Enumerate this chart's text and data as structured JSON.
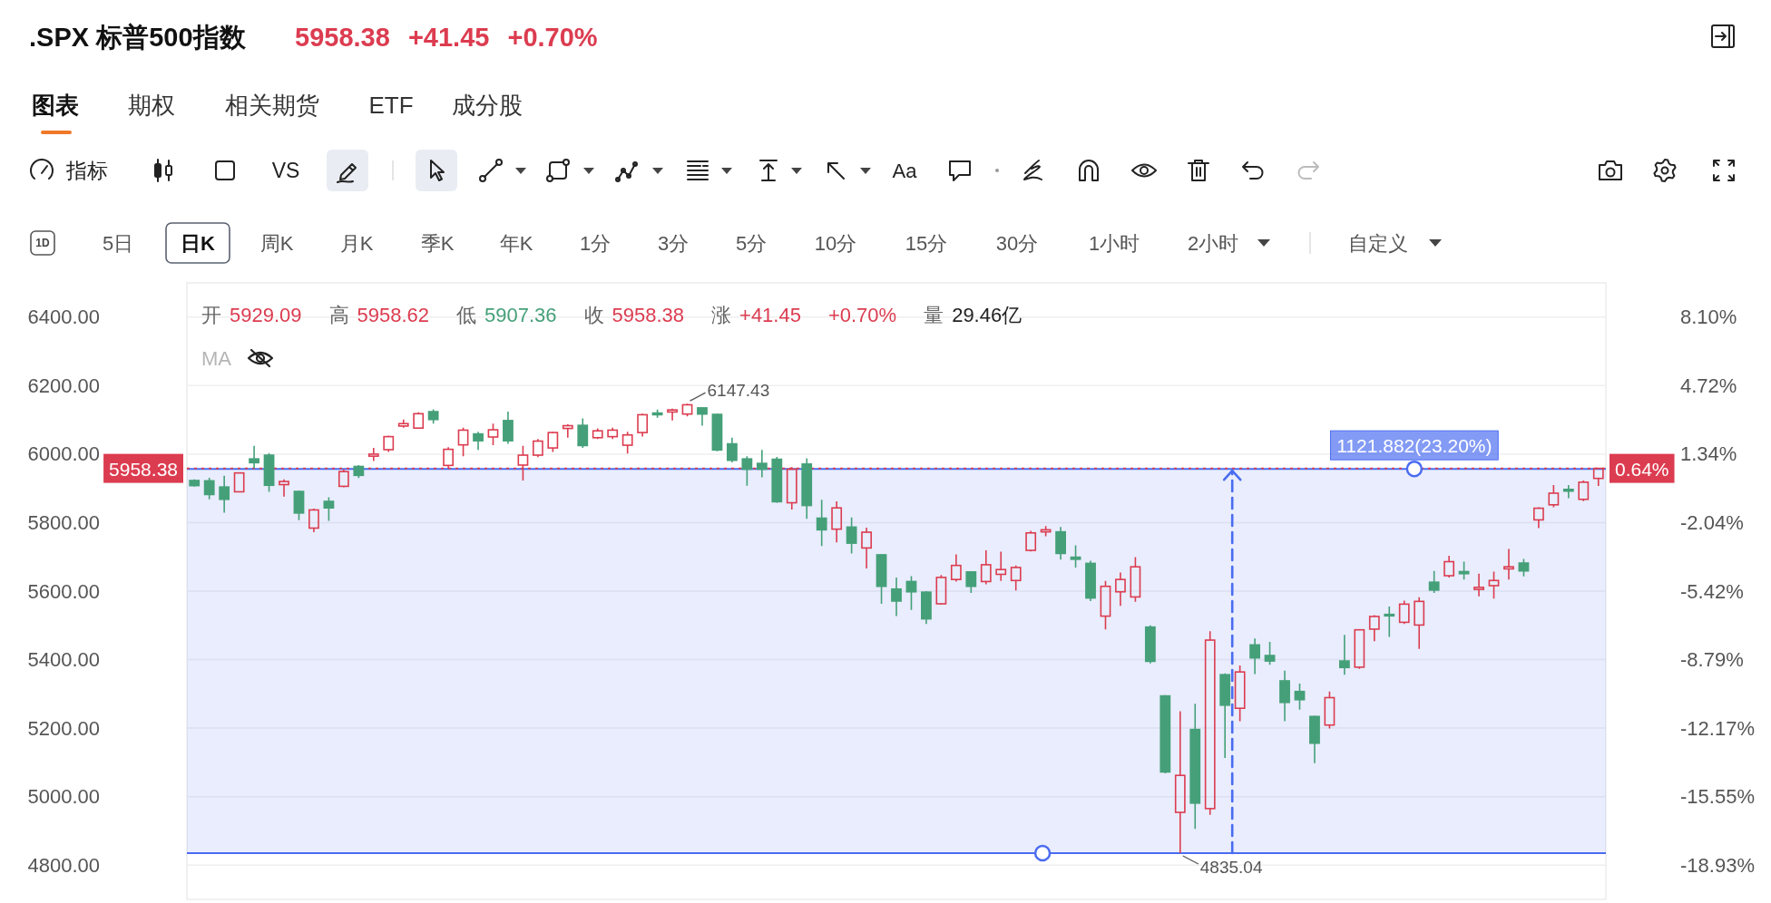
{
  "chart_data": {
    "type": "candlestick",
    "title": ".SPX 标普500指数",
    "subtitle": "5958.38 +41.45 +0.70%",
    "categories": [
      null,
      null,
      null,
      null,
      null,
      null,
      null,
      null,
      null,
      null,
      null,
      null,
      null,
      null,
      null,
      null,
      null,
      null,
      null,
      null,
      null,
      null,
      null,
      null,
      null,
      null,
      null,
      null,
      null,
      null,
      null,
      null,
      null,
      null,
      null,
      null,
      null,
      null,
      null,
      null,
      null,
      null,
      null,
      null,
      null,
      null,
      null,
      null,
      null,
      null,
      null,
      null,
      null,
      null,
      null,
      null,
      null,
      null,
      null,
      null,
      null,
      null,
      null,
      null,
      null,
      null,
      null,
      null,
      null,
      null,
      null,
      null,
      null,
      null,
      null,
      null,
      null,
      null,
      null,
      null,
      null,
      null,
      null,
      null,
      null,
      null,
      null,
      null,
      null,
      null,
      null,
      null,
      null,
      null,
      null
    ],
    "ohlc": [
      [
        5923,
        5926,
        5905,
        5908
      ],
      [
        5922,
        5931,
        5868,
        5882
      ],
      [
        5904,
        5937,
        5829,
        5868
      ],
      [
        5890,
        5945,
        5890,
        5945
      ],
      [
        5986,
        6024,
        5959,
        5975
      ],
      [
        5997,
        6003,
        5890,
        5909
      ],
      [
        5911,
        5926,
        5876,
        5920
      ],
      [
        5891,
        5893,
        5807,
        5828
      ],
      [
        5784,
        5841,
        5772,
        5837
      ],
      [
        5862,
        5874,
        5805,
        5843
      ],
      [
        5906,
        5956,
        5903,
        5949
      ],
      [
        5964,
        5968,
        5930,
        5938
      ],
      [
        5994,
        6018,
        5980,
        6000
      ],
      [
        6013,
        6054,
        6006,
        6051
      ],
      [
        6082,
        6101,
        6077,
        6089
      ],
      [
        6076,
        6122,
        6074,
        6118
      ],
      [
        6124,
        6131,
        6089,
        6101
      ],
      [
        5967,
        6020,
        5959,
        6014
      ],
      [
        6027,
        6077,
        5994,
        6070
      ],
      [
        6059,
        6065,
        6012,
        6039
      ],
      [
        6050,
        6089,
        6026,
        6071
      ],
      [
        6098,
        6124,
        6030,
        6039
      ],
      [
        5968,
        6024,
        5923,
        5997
      ],
      [
        5997,
        6044,
        5991,
        6038
      ],
      [
        6018,
        6065,
        6006,
        6063
      ],
      [
        6075,
        6087,
        6048,
        6083
      ],
      [
        6084,
        6104,
        6018,
        6025
      ],
      [
        6048,
        6075,
        6044,
        6068
      ],
      [
        6051,
        6077,
        6044,
        6070
      ],
      [
        6026,
        6065,
        6002,
        6056
      ],
      [
        6063,
        6118,
        6051,
        6115
      ],
      [
        6120,
        6130,
        6106,
        6115
      ],
      [
        6123,
        6133,
        6098,
        6129
      ],
      [
        6117,
        6147.43,
        6110,
        6144
      ],
      [
        6135,
        6136,
        6083,
        6117
      ],
      [
        6116,
        6118,
        6008,
        6012
      ],
      [
        6030,
        6048,
        5976,
        5982
      ],
      [
        5986,
        5994,
        5908,
        5956
      ],
      [
        5973,
        6012,
        5932,
        5956
      ],
      [
        5985,
        5992,
        5858,
        5861
      ],
      [
        5858,
        5962,
        5838,
        5956
      ],
      [
        5971,
        5988,
        5811,
        5850
      ],
      [
        5813,
        5867,
        5732,
        5779
      ],
      [
        5781,
        5862,
        5742,
        5843
      ],
      [
        5787,
        5815,
        5710,
        5740
      ],
      [
        5726,
        5785,
        5666,
        5772
      ],
      [
        5706,
        5707,
        5563,
        5614
      ],
      [
        5606,
        5640,
        5527,
        5571
      ],
      [
        5628,
        5644,
        5545,
        5598
      ],
      [
        5597,
        5600,
        5504,
        5519
      ],
      [
        5563,
        5647,
        5560,
        5640
      ],
      [
        5634,
        5707,
        5628,
        5675
      ],
      [
        5656,
        5658,
        5595,
        5614
      ],
      [
        5628,
        5719,
        5620,
        5677
      ],
      [
        5649,
        5715,
        5630,
        5663
      ],
      [
        5631,
        5675,
        5602,
        5669
      ],
      [
        5719,
        5776,
        5716,
        5770
      ],
      [
        5773,
        5790,
        5760,
        5779
      ],
      [
        5773,
        5787,
        5692,
        5710
      ],
      [
        5699,
        5734,
        5669,
        5693
      ],
      [
        5681,
        5689,
        5571,
        5580
      ],
      [
        5527,
        5630,
        5488,
        5614
      ],
      [
        5598,
        5654,
        5557,
        5634
      ],
      [
        5583,
        5699,
        5569,
        5671
      ],
      [
        5495,
        5500,
        5389,
        5395
      ],
      [
        5294,
        5296,
        5068,
        5072
      ],
      [
        4954,
        5249,
        4835.04,
        5062
      ],
      [
        5196,
        5271,
        4906,
        4981
      ],
      [
        4965,
        5483,
        4947,
        5457
      ],
      [
        5356,
        5360,
        5113,
        5267
      ],
      [
        5258,
        5383,
        5220,
        5364
      ],
      [
        5443,
        5462,
        5358,
        5405
      ],
      [
        5412,
        5452,
        5385,
        5396
      ],
      [
        5338,
        5368,
        5220,
        5275
      ],
      [
        5307,
        5330,
        5254,
        5283
      ],
      [
        5234,
        5236,
        5098,
        5156
      ],
      [
        5209,
        5307,
        5199,
        5289
      ],
      [
        5396,
        5472,
        5356,
        5377
      ],
      [
        5378,
        5489,
        5373,
        5487
      ],
      [
        5489,
        5530,
        5454,
        5526
      ],
      [
        5532,
        5555,
        5466,
        5530
      ],
      [
        5509,
        5572,
        5504,
        5562
      ],
      [
        5501,
        5582,
        5431,
        5570
      ],
      [
        5626,
        5659,
        5595,
        5603
      ],
      [
        5645,
        5703,
        5640,
        5686
      ],
      [
        5657,
        5686,
        5634,
        5651
      ],
      [
        5605,
        5651,
        5585,
        5611
      ],
      [
        5616,
        5657,
        5578,
        5631
      ],
      [
        5665,
        5723,
        5634,
        5671
      ],
      [
        5682,
        5694,
        5643,
        5659
      ],
      [
        5808,
        5845,
        5784,
        5842
      ],
      [
        5852,
        5910,
        5845,
        5886
      ],
      [
        5897,
        5910,
        5871,
        5892
      ],
      [
        5868,
        5923,
        5863,
        5918
      ],
      [
        5929.09,
        5958.62,
        5907.36,
        5958.38
      ]
    ],
    "colors": [
      "#45a079",
      "#45a079",
      "#45a079",
      "#dc3c50",
      "#45a079",
      "#45a079",
      "#dc3c50",
      "#45a079",
      "#dc3c50",
      "#45a079",
      "#dc3c50",
      "#45a079",
      "#dc3c50",
      "#dc3c50",
      "#dc3c50",
      "#dc3c50",
      "#45a079",
      "#dc3c50",
      "#dc3c50",
      "#45a079",
      "#dc3c50",
      "#45a079",
      "#dc3c50",
      "#dc3c50",
      "#dc3c50",
      "#dc3c50",
      "#45a079",
      "#dc3c50",
      "#dc3c50",
      "#dc3c50",
      "#dc3c50",
      "#45a079",
      "#dc3c50",
      "#dc3c50",
      "#45a079",
      "#45a079",
      "#45a079",
      "#45a079",
      "#45a079",
      "#45a079",
      "#dc3c50",
      "#45a079",
      "#45a079",
      "#dc3c50",
      "#45a079",
      "#dc3c50",
      "#45a079",
      "#45a079",
      "#45a079",
      "#45a079",
      "#dc3c50",
      "#dc3c50",
      "#45a079",
      "#dc3c50",
      "#dc3c50",
      "#dc3c50",
      "#dc3c50",
      "#dc3c50",
      "#45a079",
      "#45a079",
      "#45a079",
      "#dc3c50",
      "#dc3c50",
      "#dc3c50",
      "#45a079",
      "#45a079",
      "#dc3c50",
      "#45a079",
      "#dc3c50",
      "#45a079",
      "#dc3c50",
      "#45a079",
      "#45a079",
      "#45a079",
      "#45a079",
      "#45a079",
      "#dc3c50",
      "#45a079",
      "#dc3c50",
      "#dc3c50",
      "#45a079",
      "#dc3c50",
      "#dc3c50",
      "#45a079",
      "#dc3c50",
      "#45a079",
      "#dc3c50",
      "#dc3c50",
      "#dc3c50",
      "#45a079",
      "#dc3c50",
      "#dc3c50",
      "#45a079",
      "#dc3c50",
      "#dc3c50"
    ],
    "ylim": [
      4700,
      6500
    ],
    "yticks": [
      {
        "value": 4800,
        "label": "4800.00"
      },
      {
        "value": 5000,
        "label": "5000.00"
      },
      {
        "value": 5200,
        "label": "5200.00"
      },
      {
        "value": 5400,
        "label": "5400.00"
      },
      {
        "value": 5600,
        "label": "5600.00"
      },
      {
        "value": 5800,
        "label": "5800.00"
      },
      {
        "value": 6000,
        "label": "6000.00"
      },
      {
        "value": 6200,
        "label": "6200.00"
      },
      {
        "value": 6400,
        "label": "6400.00"
      }
    ],
    "y2lim": [
      -20.62,
      9.79
    ],
    "y2ticks": [
      {
        "value": -18.93,
        "label": "-18.93%"
      },
      {
        "value": -15.55,
        "label": "-15.55%"
      },
      {
        "value": -12.17,
        "label": "-12.17%"
      },
      {
        "value": -8.79,
        "label": "-8.79%"
      },
      {
        "value": -5.42,
        "label": "-5.42%"
      },
      {
        "value": -2.04,
        "label": "-2.04%"
      },
      {
        "value": 1.34,
        "label": "1.34%"
      },
      {
        "value": 4.72,
        "label": "4.72%"
      },
      {
        "value": 8.1,
        "label": "8.10%"
      }
    ],
    "grid": "y",
    "ref_lines": [
      {
        "axis": "y",
        "value": 5958.38,
        "label": "5958.38",
        "color": "#dc3c50",
        "line_style": "dotted"
      }
    ],
    "bands": [
      {
        "axis": "y",
        "from": 4835.04,
        "to": 5956.92,
        "label": "1121.882(23.20%)",
        "color": "#4a6cf0"
      }
    ],
    "annotations": [
      "图表",
      "期权",
      "相关期货",
      "ETF",
      "成分股",
      "指标",
      "VS",
      "Aa",
      "1D",
      "5日",
      "日K",
      "周K",
      "月K",
      "季K",
      "年K",
      "1分",
      "3分",
      "5分",
      "10分",
      "15分",
      "30分",
      "1小时",
      "2小时",
      "自定义",
      "开",
      "5929.09",
      "高",
      "5958.62",
      "低",
      "5907.36",
      "收",
      "5958.38",
      "涨",
      "+41.45",
      "+0.70%",
      "量",
      "29.46亿",
      "MA",
      "6147.43",
      "4835.04",
      "0.64%"
    ]
  }
}
